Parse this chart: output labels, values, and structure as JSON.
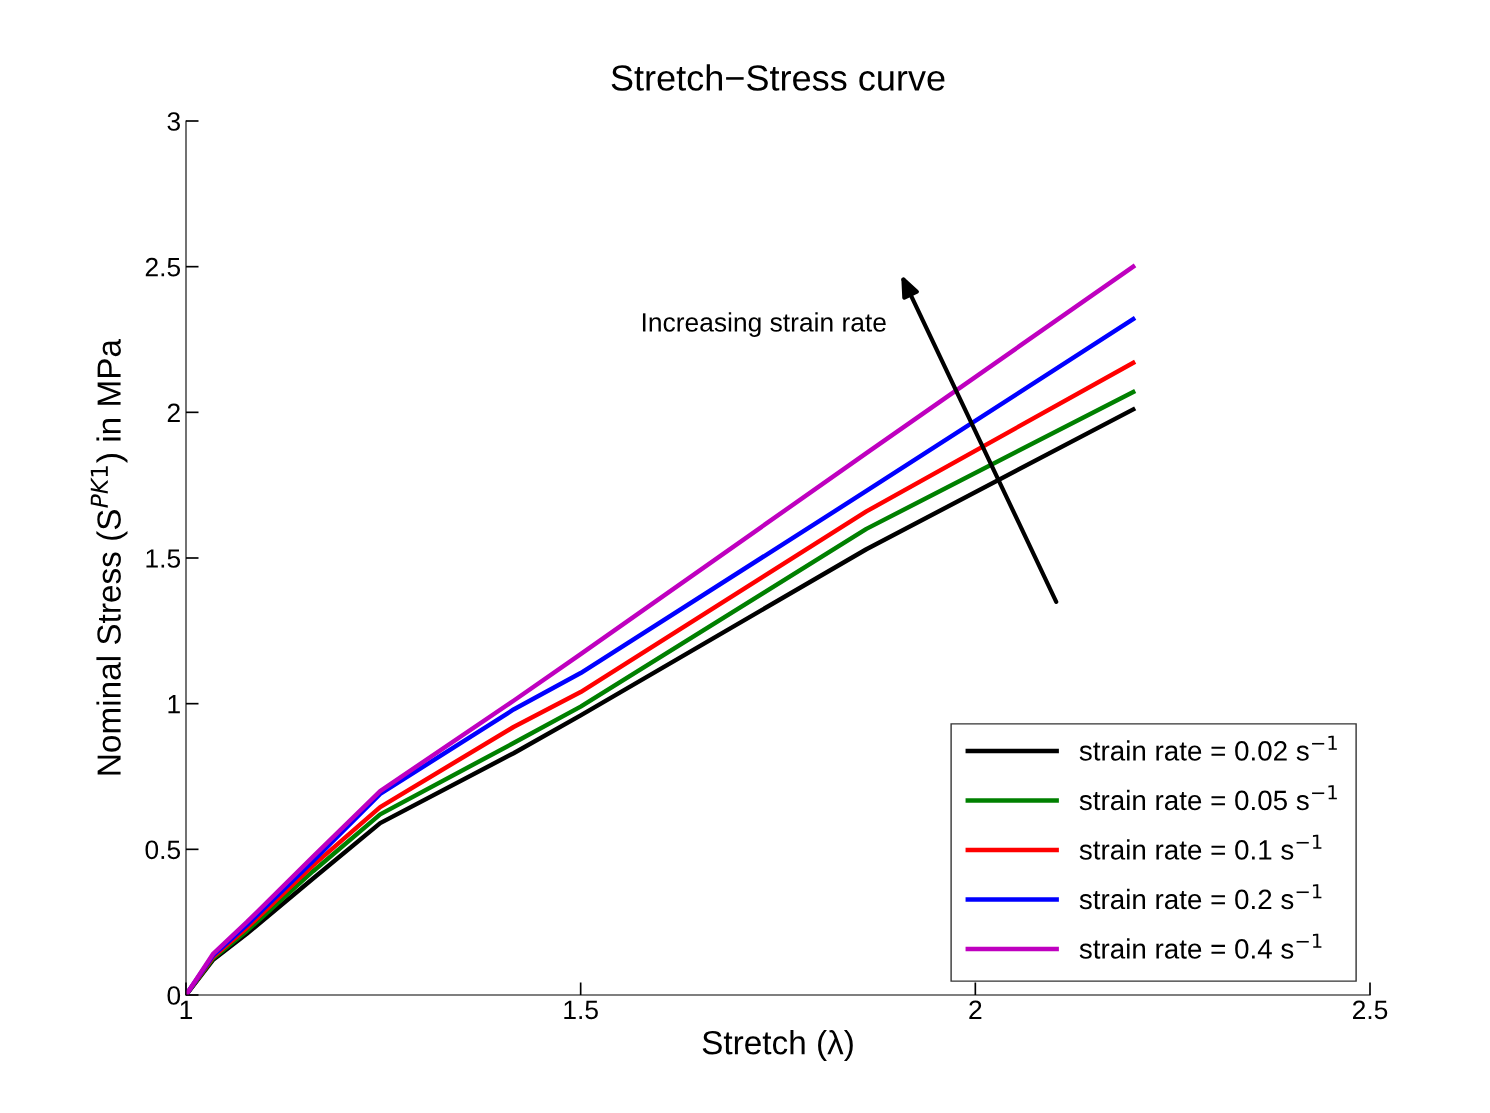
{
  "chart_data": {
    "type": "line",
    "title": "Stretch−Stress curve",
    "xlabel": "Stretch (λ)",
    "ylabel": "Nominal Stress (S$^{PK1}$) in MPa",
    "x": [
      1,
      1.034,
      1.077,
      1.161,
      1.246,
      1.415,
      1.5,
      1.862,
      2.2
    ],
    "series": [
      {
        "name": "strain rate = 0.02 s$^{−1}$",
        "color": "#000000",
        "values": [
          0,
          0.12,
          0.21,
          0.4,
          0.59,
          0.83,
          0.96,
          1.53,
          2.01
        ]
      },
      {
        "name": "strain rate = 0.05 s$^{−1}$",
        "color": "#008000",
        "values": [
          0,
          0.125,
          0.22,
          0.425,
          0.62,
          0.865,
          0.99,
          1.6,
          2.07
        ]
      },
      {
        "name": "strain rate = 0.1 s$^{−1}$",
        "color": "#ff0000",
        "values": [
          0,
          0.13,
          0.23,
          0.445,
          0.645,
          0.92,
          1.04,
          1.66,
          2.17
        ]
      },
      {
        "name": "strain rate = 0.2 s$^{−1}$",
        "color": "#0000ff",
        "values": [
          0,
          0.135,
          0.24,
          0.46,
          0.69,
          0.98,
          1.105,
          1.73,
          2.32
        ]
      },
      {
        "name": "strain rate = 0.4 s$^{−1}$",
        "color": "#bf00bf",
        "values": [
          0,
          0.14,
          0.25,
          0.475,
          0.7,
          1.01,
          1.17,
          1.86,
          2.5
        ]
      }
    ],
    "xlim": [
      1,
      2.5
    ],
    "xticks": [
      1,
      1.5,
      2,
      2.5
    ],
    "ylim": [
      0,
      3
    ],
    "yticks": [
      0,
      0.5,
      1,
      1.5,
      2,
      2.5,
      3
    ],
    "annotations": [
      "Increasing strain rate"
    ],
    "legend": "bottom right",
    "grid": false,
    "marker": "none",
    "line_style": "solid"
  }
}
